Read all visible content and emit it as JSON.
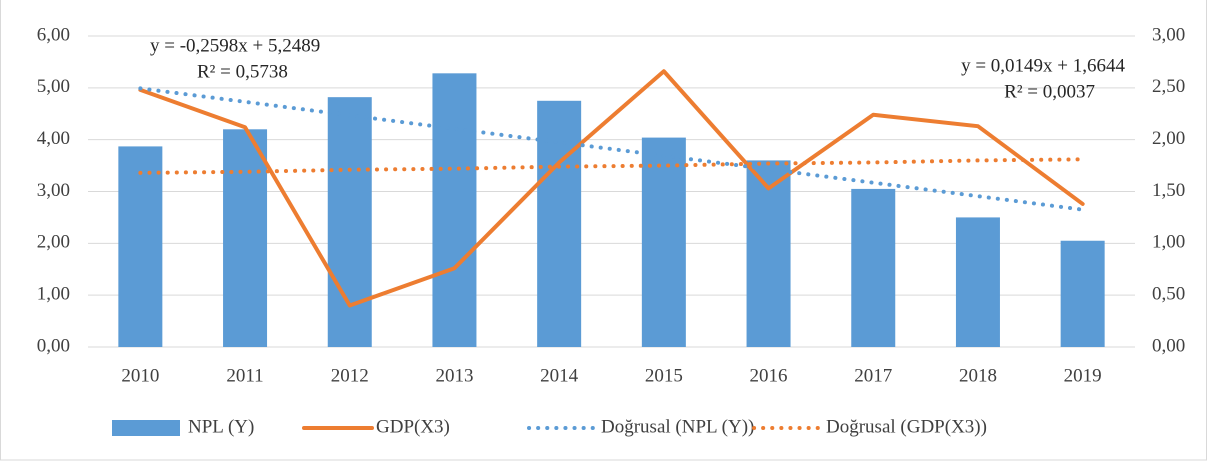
{
  "chart_data": {
    "type": "bar",
    "categories": [
      "2010",
      "2011",
      "2012",
      "2013",
      "2014",
      "2015",
      "2016",
      "2017",
      "2018",
      "2019"
    ],
    "series": [
      {
        "name": "NPL (Y)",
        "type": "bar",
        "axis": "y",
        "color": "#5b9bd5",
        "values": [
          3.87,
          4.2,
          4.82,
          5.28,
          4.75,
          4.04,
          3.6,
          3.05,
          2.5,
          2.05
        ]
      },
      {
        "name": "GDP(X3)",
        "type": "line",
        "axis": "y2",
        "color": "#ed7d31",
        "values": [
          2.48,
          2.12,
          0.4,
          0.76,
          1.78,
          2.66,
          1.53,
          2.24,
          2.13,
          1.38
        ]
      },
      {
        "name": "Doğrusal (NPL (Y))",
        "type": "trendline",
        "axis": "y",
        "color": "#5b9bd5",
        "values": [
          4.99,
          4.73,
          4.47,
          4.21,
          3.95,
          3.69,
          3.43,
          3.17,
          2.91,
          2.65
        ]
      },
      {
        "name": "Doğrusal (GDP(X3))",
        "type": "trendline",
        "axis": "y2",
        "color": "#ed7d31",
        "values": [
          1.68,
          1.69,
          1.71,
          1.72,
          1.74,
          1.75,
          1.77,
          1.78,
          1.8,
          1.81
        ]
      }
    ],
    "annotations": [
      {
        "equation": "y = -0,2598x + 5,2489",
        "r2": "R² = 0,5738"
      },
      {
        "equation": "y = 0,0149x + 1,6644",
        "r2": "R² = 0,0037"
      }
    ],
    "ylim": [
      0,
      6
    ],
    "yticks": [
      {
        "value": 0,
        "label": "0,00"
      },
      {
        "value": 1,
        "label": "1,00"
      },
      {
        "value": 2,
        "label": "2,00"
      },
      {
        "value": 3,
        "label": "3,00"
      },
      {
        "value": 4,
        "label": "4,00"
      },
      {
        "value": 5,
        "label": "5,00"
      },
      {
        "value": 6,
        "label": "6,00"
      }
    ],
    "y2lim": [
      0,
      3
    ],
    "y2ticks": [
      {
        "value": 0,
        "label": "0,00"
      },
      {
        "value": 0.5,
        "label": "0,50"
      },
      {
        "value": 1,
        "label": "1,00"
      },
      {
        "value": 1.5,
        "label": "1,50"
      },
      {
        "value": 2,
        "label": "2,00"
      },
      {
        "value": 2.5,
        "label": "2,50"
      },
      {
        "value": 3,
        "label": "3,00"
      }
    ],
    "grid": true,
    "legend": "bottom"
  }
}
